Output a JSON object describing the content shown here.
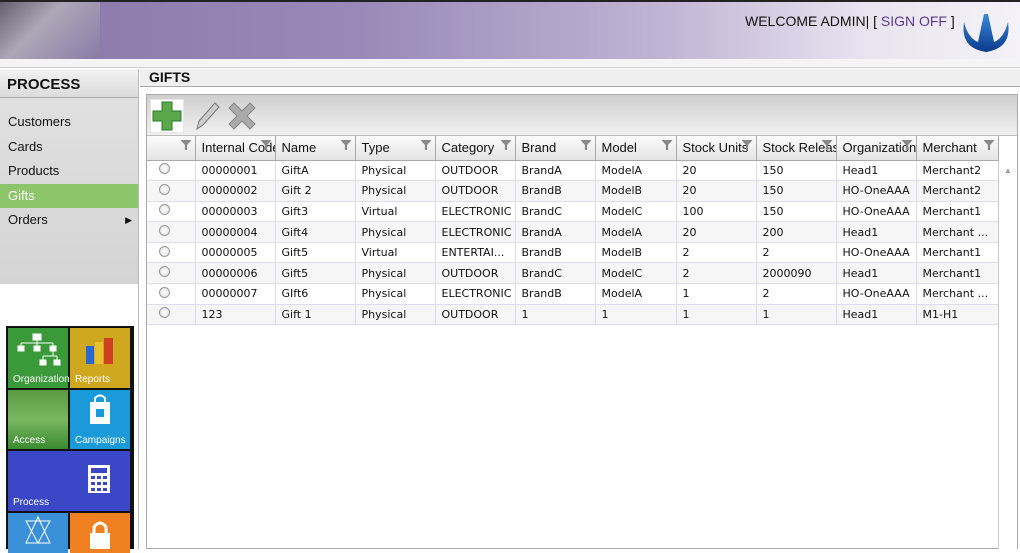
{
  "header": {
    "welcome": "WELCOME ADMIN| [ ",
    "sign_off": "SIGN OFF",
    "close_bracket": " ]"
  },
  "sidebar": {
    "title": "PROCESS",
    "items": [
      {
        "label": "Customers"
      },
      {
        "label": "Cards"
      },
      {
        "label": "Products"
      },
      {
        "label": "Gifts",
        "active": true
      },
      {
        "label": "Orders",
        "has_submenu": true
      }
    ],
    "tiles": [
      {
        "label": "Organization",
        "color": "#3a9a3a"
      },
      {
        "label": "Reports",
        "color": "#d0a820"
      },
      {
        "label": "Access",
        "color": "#4aa040"
      },
      {
        "label": "Campaigns",
        "color": "#1a9ad8"
      },
      {
        "label": "Process",
        "color": "#3a48c8"
      },
      {
        "label": "",
        "color": "#3a90d8"
      },
      {
        "label": "",
        "color": "#f08020"
      }
    ]
  },
  "main": {
    "title": "GIFTS",
    "toolbar": {
      "add": "add",
      "edit": "edit",
      "delete": "delete"
    },
    "columns": [
      "",
      "Internal Code",
      "Name",
      "Type",
      "Category",
      "Brand",
      "Model",
      "Stock Units",
      "Stock Release",
      "Organization",
      "Merchant"
    ],
    "rows": [
      [
        "00000001",
        "GiftA",
        "Physical",
        "OUTDOOR",
        "BrandA",
        "ModelA",
        "20",
        "150",
        "Head1",
        "Merchant2"
      ],
      [
        "00000002",
        "Gift 2",
        "Physical",
        "OUTDOOR",
        "BrandB",
        "ModelB",
        "20",
        "150",
        "HO-OneAAA",
        "Merchant2"
      ],
      [
        "00000003",
        "Gift3",
        "Virtual",
        "ELECTRONIC",
        "BrandC",
        "ModelC",
        "100",
        "150",
        "HO-OneAAA",
        "Merchant1"
      ],
      [
        "00000004",
        "Gift4",
        "Physical",
        "ELECTRONIC",
        "BrandA",
        "ModelA",
        "20",
        "200",
        "Head1",
        "Merchant ..."
      ],
      [
        "00000005",
        "Gift5",
        "Virtual",
        "ENTERTAI...",
        "BrandB",
        "ModelB",
        "2",
        "2",
        "HO-OneAAA",
        "Merchant1"
      ],
      [
        "00000006",
        "Gift5",
        "Physical",
        "OUTDOOR",
        "BrandC",
        "ModelC",
        "2",
        "2000090",
        "Head1",
        "Merchant1"
      ],
      [
        "00000007",
        "GIft6",
        "Physical",
        "ELECTRONIC",
        "BrandB",
        "ModelA",
        "1",
        "2",
        "HO-OneAAA",
        "Merchant ..."
      ],
      [
        "123",
        "Gift 1",
        "Physical",
        "OUTDOOR",
        "1",
        "1",
        "1",
        "1",
        "Head1",
        "M1-H1"
      ]
    ]
  }
}
